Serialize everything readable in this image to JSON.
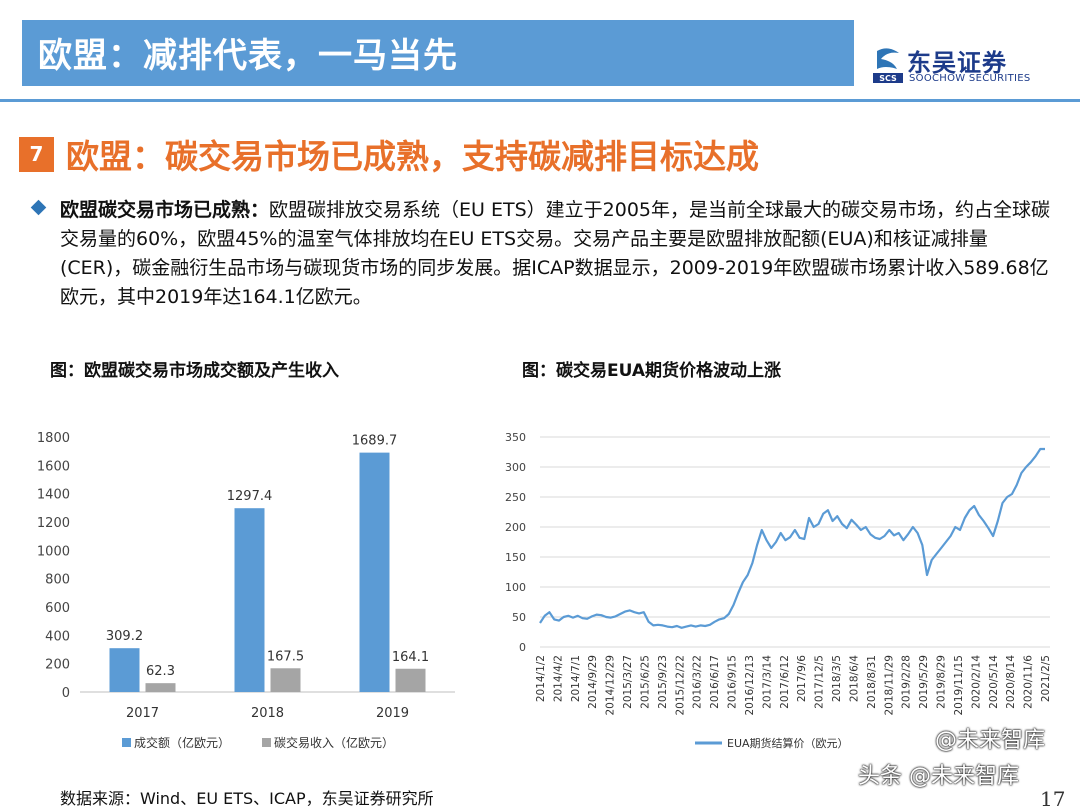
{
  "header": {
    "title": "欧盟：减排代表，一马当先",
    "logo_cn": "东吴证券",
    "logo_en": "SOOCHOW SECURITIES",
    "logo_mark": "SCS"
  },
  "section": {
    "number": "7",
    "title": "欧盟：碳交易市场已成熟，支持碳减排目标达成"
  },
  "bullet": {
    "bold": "欧盟碳交易市场已成熟：",
    "text": "欧盟碳排放交易系统（EU ETS）建立于2005年，是当前全球最大的碳交易市场，约占全球碳交易量的60%，欧盟45%的温室气体排放均在EU ETS交易。交易产品主要是欧盟排放配额(EUA)和核证减排量(CER)，碳金融衍生品市场与碳现货市场的同步发展。据ICAP数据显示，2009-2019年欧盟碳市场累计收入589.68亿欧元，其中2019年达164.1亿欧元。"
  },
  "captions": {
    "left": "图：欧盟碳交易市场成交额及产生收入",
    "right": "图：碳交易EUA期货价格波动上涨"
  },
  "source": "数据来源：Wind、EU ETS、ICAP，东吴证券研究所",
  "page_number": "17",
  "watermarks": {
    "top": "@未来智库",
    "bottom": "头条 @未来智库"
  },
  "chart_data": [
    {
      "type": "bar",
      "categories": [
        "2017",
        "2018",
        "2019"
      ],
      "series": [
        {
          "name": "成交额（亿欧元）",
          "values": [
            309.2,
            1297.4,
            1689.7
          ],
          "color": "#5b9bd5"
        },
        {
          "name": "碳交易收入（亿欧元）",
          "values": [
            62.3,
            167.5,
            164.1
          ],
          "color": "#a5a5a5"
        }
      ],
      "data_labels": [
        [
          "309.2",
          "1297.4",
          "1689.7"
        ],
        [
          "62.3",
          "167.5",
          "164.1"
        ]
      ],
      "ylim": [
        0,
        1800
      ],
      "yticks": [
        0,
        200,
        400,
        600,
        800,
        1000,
        1200,
        1400,
        1600,
        1800
      ],
      "grid": false,
      "legend": "bottom"
    },
    {
      "type": "line",
      "x_tick_labels": [
        "2014/1/2",
        "2014/4/2",
        "2014/7/1",
        "2014/9/29",
        "2014/12/29",
        "2015/3/27",
        "2015/6/25",
        "2015/9/23",
        "2015/12/22",
        "2016/3/22",
        "2016/6/17",
        "2016/9/15",
        "2016/12/13",
        "2017/3/14",
        "2017/6/12",
        "2017/9/6",
        "2017/12/5",
        "2018/3/5",
        "2018/6/4",
        "2018/8/31",
        "2018/11/29",
        "2019/2/28",
        "2019/5/29",
        "2019/8/29",
        "2019/11/15",
        "2020/2/14",
        "2020/5/14",
        "2020/8/14",
        "2020/11/6",
        "2021/2/5"
      ],
      "series": [
        {
          "name": "EUA期货结算价（欧元）",
          "color": "#5b9bd5",
          "values": [
            40,
            52,
            58,
            46,
            44,
            50,
            52,
            49,
            52,
            48,
            47,
            51,
            54,
            53,
            50,
            49,
            51,
            55,
            59,
            61,
            58,
            56,
            58,
            42,
            36,
            37,
            36,
            34,
            33,
            35,
            32,
            34,
            36,
            34,
            36,
            35,
            37,
            42,
            46,
            48,
            55,
            70,
            90,
            108,
            120,
            140,
            170,
            195,
            178,
            165,
            175,
            190,
            178,
            183,
            195,
            182,
            180,
            215,
            200,
            205,
            222,
            228,
            210,
            218,
            205,
            198,
            212,
            204,
            195,
            200,
            188,
            182,
            180,
            185,
            195,
            186,
            190,
            178,
            188,
            200,
            190,
            170,
            120,
            145,
            155,
            165,
            175,
            185,
            200,
            195,
            215,
            228,
            235,
            220,
            210,
            198,
            185,
            210,
            240,
            250,
            255,
            270,
            290,
            300,
            308,
            318,
            330,
            330
          ]
        }
      ],
      "ylim": [
        0,
        350
      ],
      "yticks": [
        0,
        50,
        100,
        150,
        200,
        250,
        300,
        350
      ],
      "grid": true,
      "legend": "bottom"
    }
  ]
}
